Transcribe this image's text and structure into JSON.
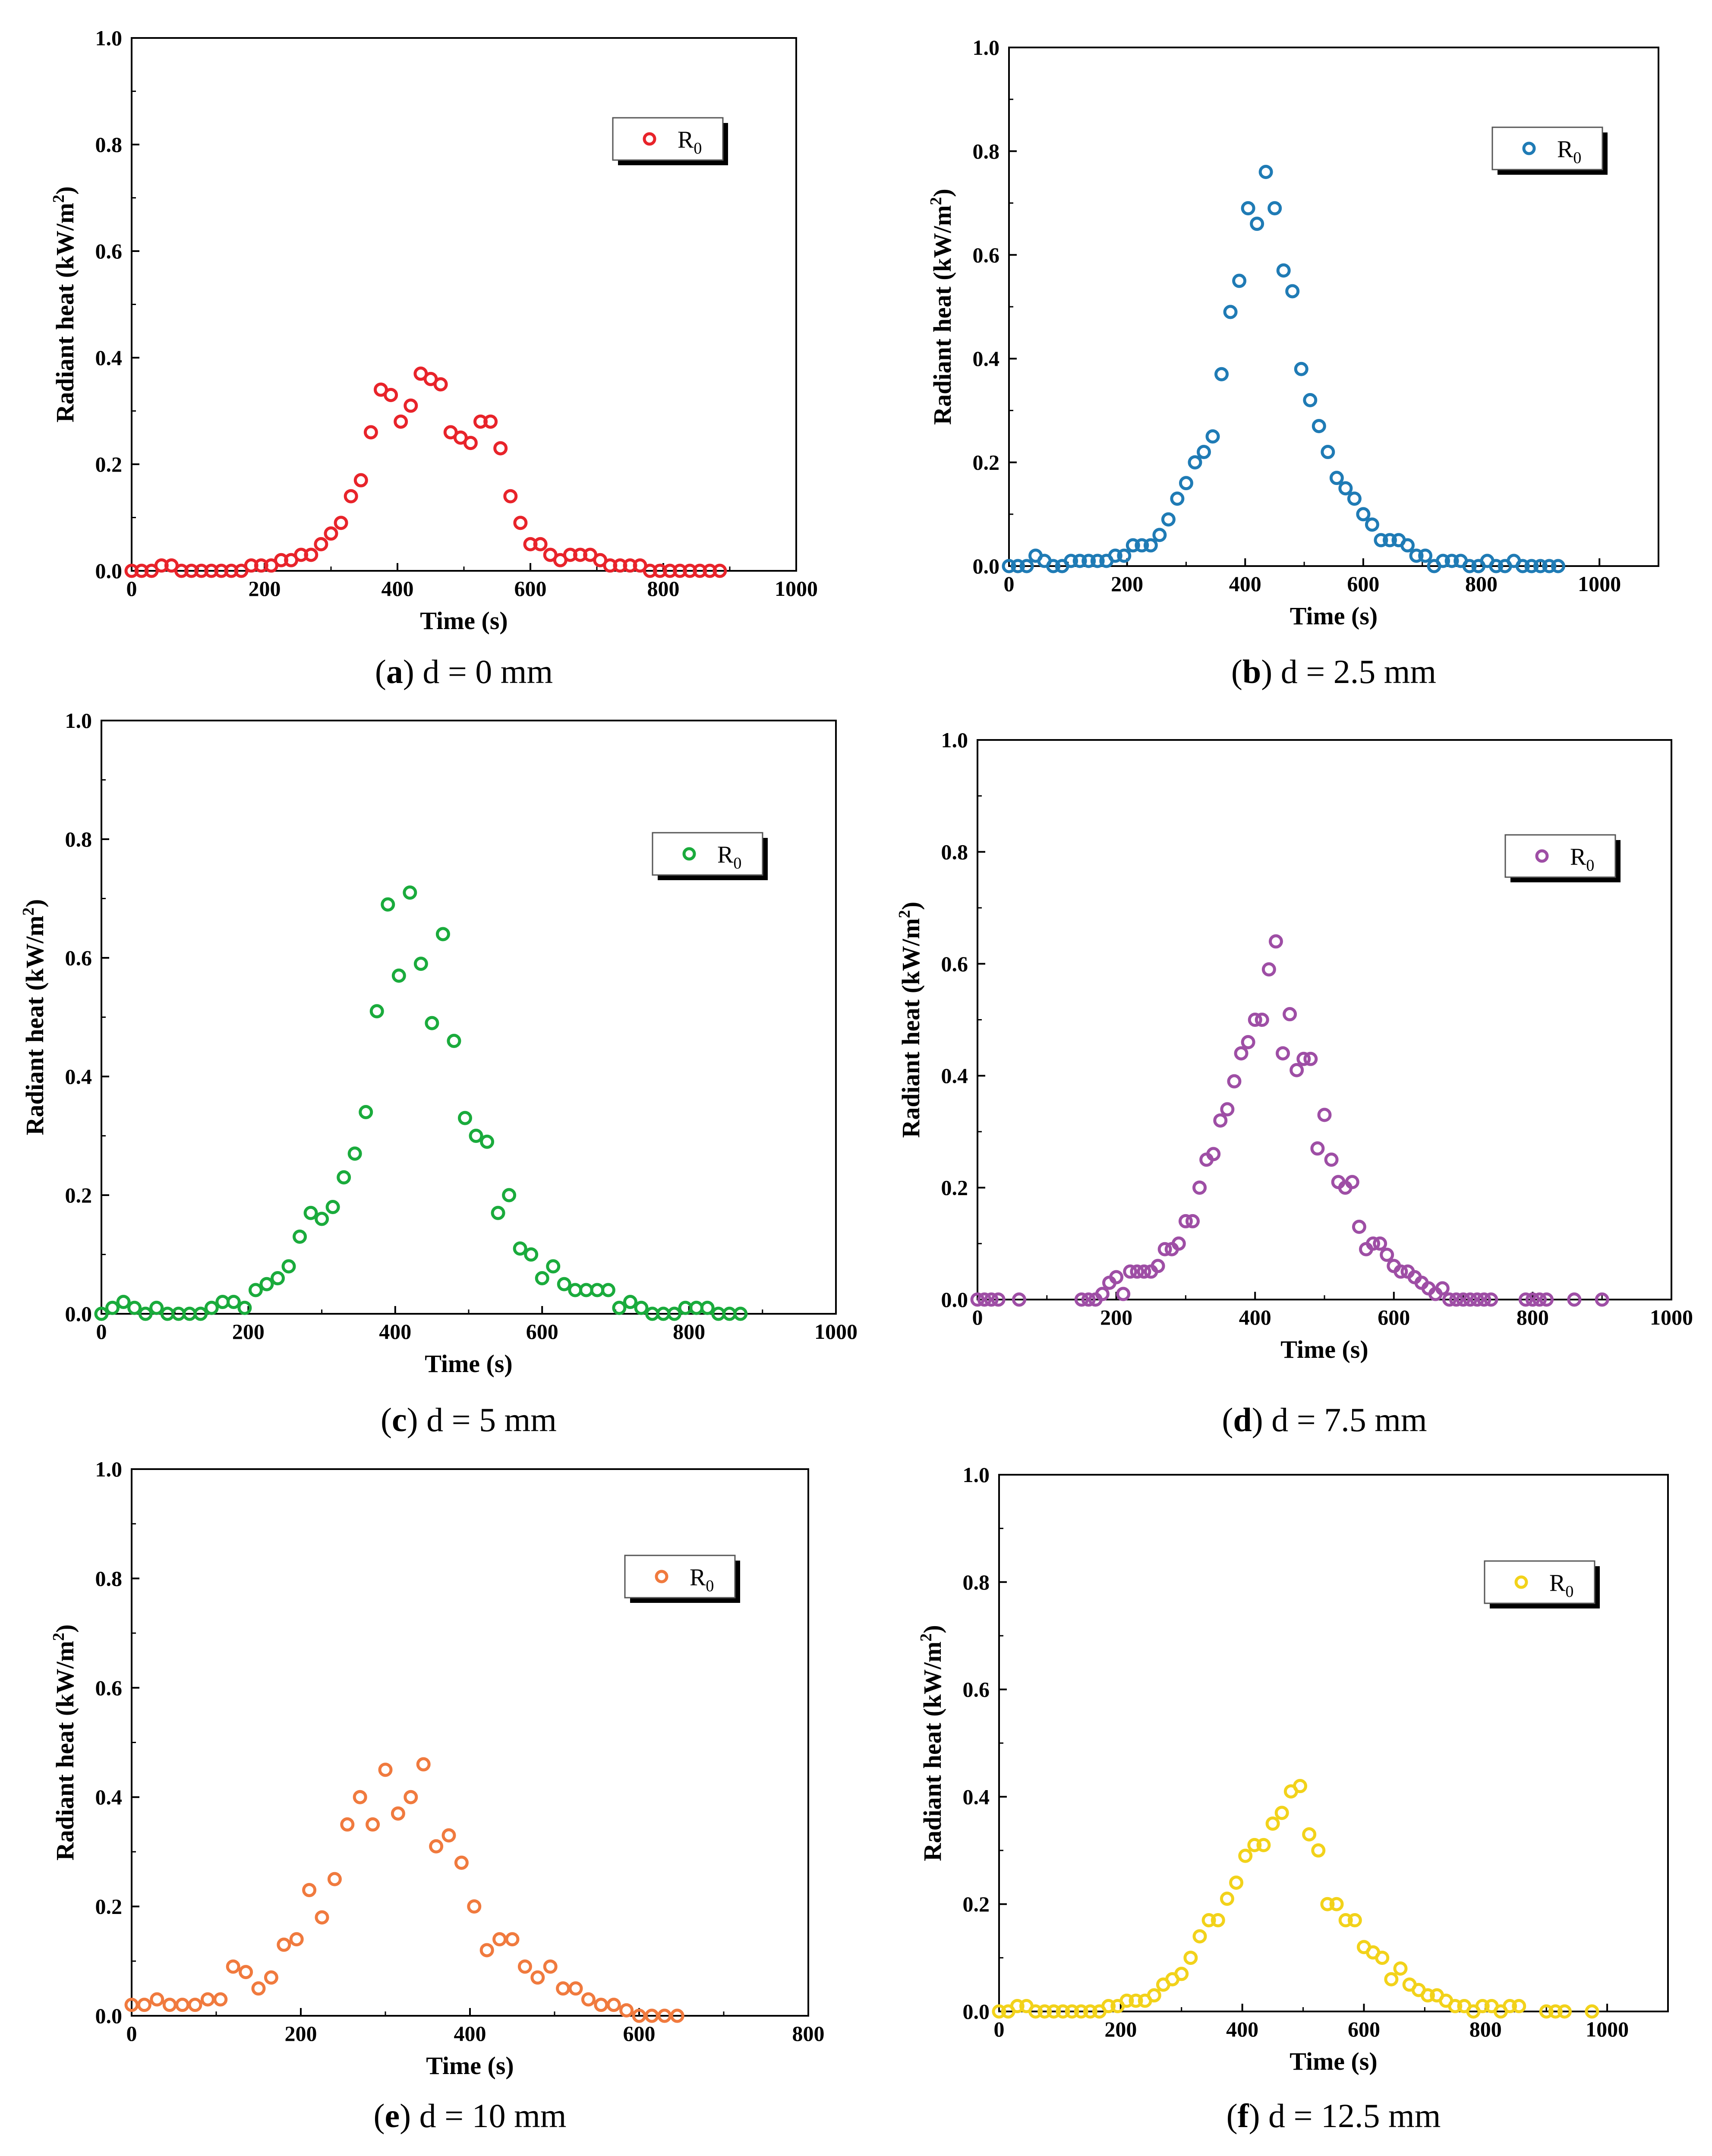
{
  "chart_data": [
    {
      "type": "scatter",
      "panel": "a",
      "caption": {
        "letter": "a",
        "text": "d = 0 mm"
      },
      "xlabel": "Time (s)",
      "ylabel_main": "Radiant heat (kW/m",
      "ylabel_sup": "2",
      "ylabel_end": ")",
      "xlim": [
        0,
        1000
      ],
      "ylim": [
        0,
        1.0
      ],
      "xticks": [
        "0",
        "200",
        "400",
        "600",
        "800",
        "1000"
      ],
      "yticks": [
        "0.0",
        "0.2",
        "0.4",
        "0.6",
        "0.8",
        "1.0"
      ],
      "legend": {
        "main": "R",
        "sub": "0",
        "placement": "top-right"
      },
      "color": "#e8232a",
      "series": [
        {
          "name": "R0",
          "x": [
            0,
            15,
            30,
            45,
            60,
            75,
            90,
            105,
            120,
            135,
            150,
            165,
            180,
            195,
            210,
            225,
            240,
            255,
            270,
            285,
            300,
            315,
            330,
            345,
            360,
            375,
            390,
            405,
            420,
            435,
            450,
            465,
            480,
            495,
            510,
            525,
            540,
            555,
            570,
            585,
            600,
            615,
            630,
            645,
            660,
            675,
            690,
            705,
            720,
            735,
            750,
            765,
            780,
            795,
            810,
            825,
            840,
            855,
            870,
            885
          ],
          "y": [
            0,
            0,
            0,
            0.01,
            0.01,
            0,
            0,
            0,
            0,
            0,
            0,
            0,
            0.01,
            0.01,
            0.01,
            0.02,
            0.02,
            0.03,
            0.03,
            0.05,
            0.07,
            0.09,
            0.14,
            0.17,
            0.26,
            0.34,
            0.33,
            0.28,
            0.31,
            0.37,
            0.36,
            0.35,
            0.26,
            0.25,
            0.24,
            0.28,
            0.28,
            0.23,
            0.14,
            0.09,
            0.05,
            0.05,
            0.03,
            0.02,
            0.03,
            0.03,
            0.03,
            0.02,
            0.01,
            0.01,
            0.01,
            0.01,
            0,
            0,
            0,
            0,
            0,
            0,
            0,
            0
          ]
        }
      ]
    },
    {
      "type": "scatter",
      "panel": "b",
      "caption": {
        "letter": "b",
        "text": "d = 2.5 mm"
      },
      "xlabel": "Time (s)",
      "ylabel_main": "Radiant heat (kW/m",
      "ylabel_sup": "2",
      "ylabel_end": ")",
      "xlim": [
        0,
        1100
      ],
      "ylim": [
        0,
        1.0
      ],
      "xticks": [
        "0",
        "200",
        "400",
        "600",
        "800",
        "1000"
      ],
      "yticks": [
        "0.0",
        "0.2",
        "0.4",
        "0.6",
        "0.8",
        "1.0"
      ],
      "legend": {
        "main": "R",
        "sub": "0",
        "placement": "top-right"
      },
      "color": "#1f7bb5",
      "series": [
        {
          "name": "R0",
          "x": [
            0,
            15,
            30,
            45,
            60,
            75,
            90,
            105,
            120,
            135,
            150,
            165,
            180,
            195,
            210,
            225,
            240,
            255,
            270,
            285,
            300,
            315,
            330,
            345,
            360,
            375,
            390,
            405,
            420,
            435,
            450,
            465,
            480,
            495,
            510,
            525,
            540,
            555,
            570,
            585,
            600,
            615,
            630,
            645,
            660,
            675,
            690,
            705,
            720,
            735,
            750,
            765,
            780,
            795,
            810,
            825,
            840,
            855,
            870,
            885,
            900,
            915,
            930
          ],
          "y": [
            0,
            0,
            0,
            0.02,
            0.01,
            0,
            0,
            0.01,
            0.01,
            0.01,
            0.01,
            0.01,
            0.02,
            0.02,
            0.04,
            0.04,
            0.04,
            0.06,
            0.09,
            0.13,
            0.16,
            0.2,
            0.22,
            0.25,
            0.37,
            0.49,
            0.55,
            0.69,
            0.66,
            0.76,
            0.69,
            0.57,
            0.53,
            0.38,
            0.32,
            0.27,
            0.22,
            0.17,
            0.15,
            0.13,
            0.1,
            0.08,
            0.05,
            0.05,
            0.05,
            0.04,
            0.02,
            0.02,
            0,
            0.01,
            0.01,
            0.01,
            0,
            0,
            0.01,
            0,
            0,
            0.01,
            0,
            0,
            0,
            0,
            0
          ]
        }
      ]
    },
    {
      "type": "scatter",
      "panel": "c",
      "caption": {
        "letter": "c",
        "text": "d = 5 mm"
      },
      "xlabel": "Time (s)",
      "ylabel_main": "Radiant heat (kW/m",
      "ylabel_sup": "2",
      "ylabel_end": ")",
      "xlim": [
        0,
        1000
      ],
      "ylim": [
        0,
        1.0
      ],
      "xticks": [
        "0",
        "200",
        "400",
        "600",
        "800",
        "1000"
      ],
      "yticks": [
        "0.0",
        "0.2",
        "0.4",
        "0.6",
        "0.8",
        "1.0"
      ],
      "legend": {
        "main": "R",
        "sub": "0",
        "placement": "top-right"
      },
      "color": "#1aab3c",
      "series": [
        {
          "name": "R0",
          "x": [
            0,
            15,
            30,
            45,
            60,
            75,
            90,
            105,
            120,
            135,
            150,
            165,
            180,
            195,
            210,
            225,
            240,
            255,
            270,
            285,
            300,
            315,
            330,
            345,
            360,
            375,
            390,
            405,
            420,
            435,
            450,
            465,
            480,
            495,
            510,
            525,
            540,
            555,
            570,
            585,
            600,
            615,
            630,
            645,
            660,
            675,
            690,
            705,
            720,
            735,
            750,
            765,
            780,
            795,
            810,
            825,
            840,
            855,
            870
          ],
          "y": [
            0,
            0.01,
            0.02,
            0.01,
            0,
            0.01,
            0,
            0,
            0,
            0,
            0.01,
            0.02,
            0.02,
            0.01,
            0.04,
            0.05,
            0.06,
            0.08,
            0.13,
            0.17,
            0.16,
            0.18,
            0.23,
            0.27,
            0.34,
            0.51,
            0.69,
            0.57,
            0.71,
            0.59,
            0.49,
            0.64,
            0.46,
            0.33,
            0.3,
            0.29,
            0.17,
            0.2,
            0.11,
            0.1,
            0.06,
            0.08,
            0.05,
            0.04,
            0.04,
            0.04,
            0.04,
            0.01,
            0.02,
            0.01,
            0,
            0,
            0,
            0.01,
            0.01,
            0.01,
            0,
            0,
            0
          ]
        }
      ]
    },
    {
      "type": "scatter",
      "panel": "d",
      "caption": {
        "letter": "d",
        "text": "d = 7.5 mm"
      },
      "xlabel": "Time (s)",
      "ylabel_main": "Radiant heat (kW/m",
      "ylabel_sup": "2",
      "ylabel_end": ")",
      "xlim": [
        0,
        1000
      ],
      "ylim": [
        0,
        1.0
      ],
      "xticks": [
        "0",
        "200",
        "400",
        "600",
        "800",
        "1000"
      ],
      "yticks": [
        "0.0",
        "0.2",
        "0.4",
        "0.6",
        "0.8",
        "1.0"
      ],
      "legend": {
        "main": "R",
        "sub": "0",
        "placement": "top-right"
      },
      "color": "#9e4ea5",
      "series": [
        {
          "name": "R0",
          "x": [
            0,
            10,
            20,
            30,
            60,
            150,
            160,
            170,
            180,
            190,
            200,
            210,
            220,
            230,
            240,
            250,
            260,
            270,
            280,
            290,
            300,
            310,
            320,
            330,
            340,
            350,
            360,
            370,
            380,
            390,
            400,
            410,
            420,
            430,
            440,
            450,
            460,
            470,
            480,
            490,
            500,
            510,
            520,
            530,
            540,
            550,
            560,
            570,
            580,
            590,
            600,
            610,
            620,
            630,
            640,
            650,
            660,
            670,
            680,
            690,
            700,
            710,
            720,
            730,
            740,
            790,
            800,
            810,
            820,
            860,
            900
          ],
          "y": [
            0,
            0,
            0,
            0,
            0,
            0,
            0,
            0,
            0.01,
            0.03,
            0.04,
            0.01,
            0.05,
            0.05,
            0.05,
            0.05,
            0.06,
            0.09,
            0.09,
            0.1,
            0.14,
            0.14,
            0.2,
            0.25,
            0.26,
            0.32,
            0.34,
            0.39,
            0.44,
            0.46,
            0.5,
            0.5,
            0.59,
            0.64,
            0.44,
            0.51,
            0.41,
            0.43,
            0.43,
            0.27,
            0.33,
            0.25,
            0.21,
            0.2,
            0.21,
            0.13,
            0.09,
            0.1,
            0.1,
            0.08,
            0.06,
            0.05,
            0.05,
            0.04,
            0.03,
            0.02,
            0.01,
            0.02,
            0,
            0,
            0,
            0,
            0,
            0,
            0,
            0,
            0,
            0,
            0,
            0,
            0
          ]
        }
      ]
    },
    {
      "type": "scatter",
      "panel": "e",
      "caption": {
        "letter": "e",
        "text": "d = 10 mm"
      },
      "xlabel": "Time (s)",
      "ylabel_main": "Radiant heat (kW/m",
      "ylabel_sup": "2",
      "ylabel_end": ")",
      "xlim": [
        0,
        800
      ],
      "ylim": [
        0,
        1.0
      ],
      "xticks": [
        "0",
        "200",
        "400",
        "600",
        "800"
      ],
      "yticks": [
        "0.0",
        "0.2",
        "0.4",
        "0.6",
        "0.8",
        "1.0"
      ],
      "legend": {
        "main": "R",
        "sub": "0",
        "placement": "top-right"
      },
      "color": "#f07a3e",
      "series": [
        {
          "name": "R0",
          "x": [
            0,
            15,
            30,
            45,
            60,
            75,
            90,
            105,
            120,
            135,
            150,
            165,
            180,
            195,
            210,
            225,
            240,
            255,
            270,
            285,
            300,
            315,
            330,
            345,
            360,
            375,
            390,
            405,
            420,
            435,
            450,
            465,
            480,
            495,
            510,
            525,
            540,
            555,
            570,
            585,
            600,
            615,
            630,
            645
          ],
          "y": [
            0.02,
            0.02,
            0.03,
            0.02,
            0.02,
            0.02,
            0.03,
            0.03,
            0.09,
            0.08,
            0.05,
            0.07,
            0.13,
            0.14,
            0.23,
            0.18,
            0.25,
            0.35,
            0.4,
            0.35,
            0.45,
            0.37,
            0.4,
            0.46,
            0.31,
            0.33,
            0.28,
            0.2,
            0.12,
            0.14,
            0.14,
            0.09,
            0.07,
            0.09,
            0.05,
            0.05,
            0.03,
            0.02,
            0.02,
            0.01,
            0,
            0,
            0,
            0
          ]
        }
      ]
    },
    {
      "type": "scatter",
      "panel": "f",
      "caption": {
        "letter": "f",
        "text": "d = 12.5 mm"
      },
      "xlabel": "Time (s)",
      "ylabel_main": "Radiant heat (kW/m",
      "ylabel_sup": "2",
      "ylabel_end": ")",
      "xlim": [
        0,
        1100
      ],
      "ylim": [
        0,
        1.0
      ],
      "xticks": [
        "0",
        "200",
        "400",
        "600",
        "800",
        "1000"
      ],
      "yticks": [
        "0.0",
        "0.2",
        "0.4",
        "0.6",
        "0.8",
        "1.0"
      ],
      "legend": {
        "main": "R",
        "sub": "0",
        "placement": "top-right"
      },
      "color": "#f2d21a",
      "series": [
        {
          "name": "R0",
          "x": [
            0,
            15,
            30,
            45,
            60,
            75,
            90,
            105,
            120,
            135,
            150,
            165,
            180,
            195,
            210,
            225,
            240,
            255,
            270,
            285,
            300,
            315,
            330,
            345,
            360,
            375,
            390,
            405,
            420,
            435,
            450,
            465,
            480,
            495,
            510,
            525,
            540,
            555,
            570,
            585,
            600,
            615,
            630,
            645,
            660,
            675,
            690,
            705,
            720,
            735,
            750,
            765,
            780,
            795,
            810,
            825,
            840,
            855,
            900,
            915,
            930,
            975
          ],
          "y": [
            0,
            0,
            0.01,
            0.01,
            0,
            0,
            0,
            0,
            0,
            0,
            0,
            0,
            0.01,
            0.01,
            0.02,
            0.02,
            0.02,
            0.03,
            0.05,
            0.06,
            0.07,
            0.1,
            0.14,
            0.17,
            0.17,
            0.21,
            0.24,
            0.29,
            0.31,
            0.31,
            0.35,
            0.37,
            0.41,
            0.42,
            0.33,
            0.3,
            0.2,
            0.2,
            0.17,
            0.17,
            0.12,
            0.11,
            0.1,
            0.06,
            0.08,
            0.05,
            0.04,
            0.03,
            0.03,
            0.02,
            0.01,
            0.01,
            0,
            0.01,
            0.01,
            0,
            0.01,
            0.01,
            0,
            0,
            0,
            0
          ]
        }
      ]
    }
  ]
}
